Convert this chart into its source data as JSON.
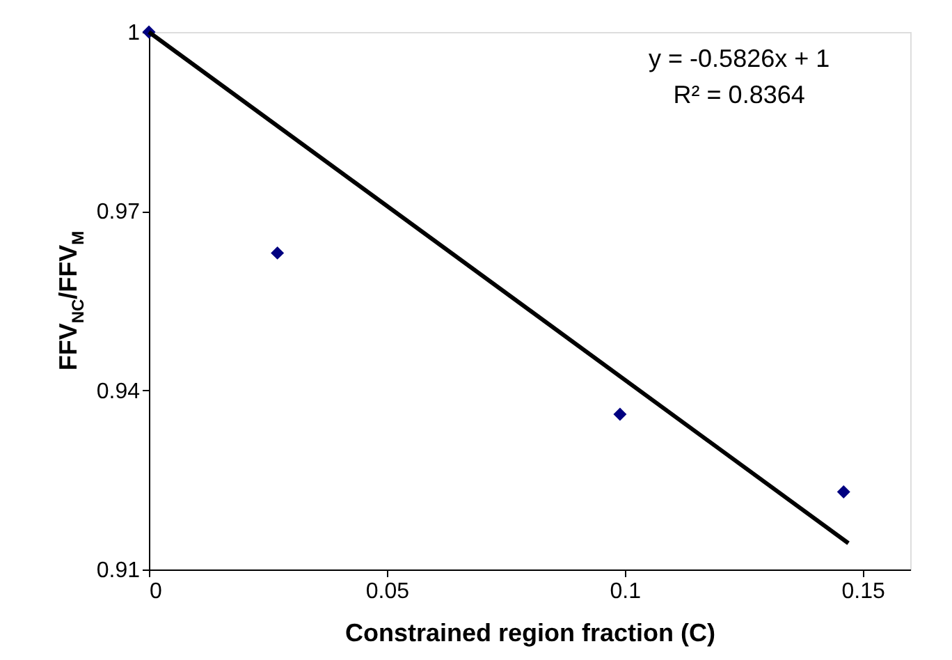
{
  "chart_data": {
    "type": "scatter",
    "xlabel": "Constrained region fraction (C)",
    "ylabel": "FFV$_{NC}$/FFV$_{M}$",
    "x": [
      0,
      0.027,
      0.099,
      0.146
    ],
    "series": [
      {
        "color": "#000080",
        "marker": "diamond",
        "values": [
          1,
          0.963,
          0.936,
          0.923
        ]
      },
      {
        "type": "line",
        "color": "#000000",
        "line_style": "solid",
        "x": [
          0,
          0.147
        ],
        "values": [
          1,
          0.9144
        ]
      }
    ],
    "xlim": [
      0,
      0.16
    ],
    "xticks": [
      0,
      0.05,
      0.1,
      0.15
    ],
    "ylim": [
      0.91,
      1
    ],
    "yticks": [
      0.91,
      0.94,
      0.97,
      1
    ],
    "annotations": [
      "y = -0.5826x + 1",
      "R² = 0.8364"
    ],
    "grid": false
  }
}
